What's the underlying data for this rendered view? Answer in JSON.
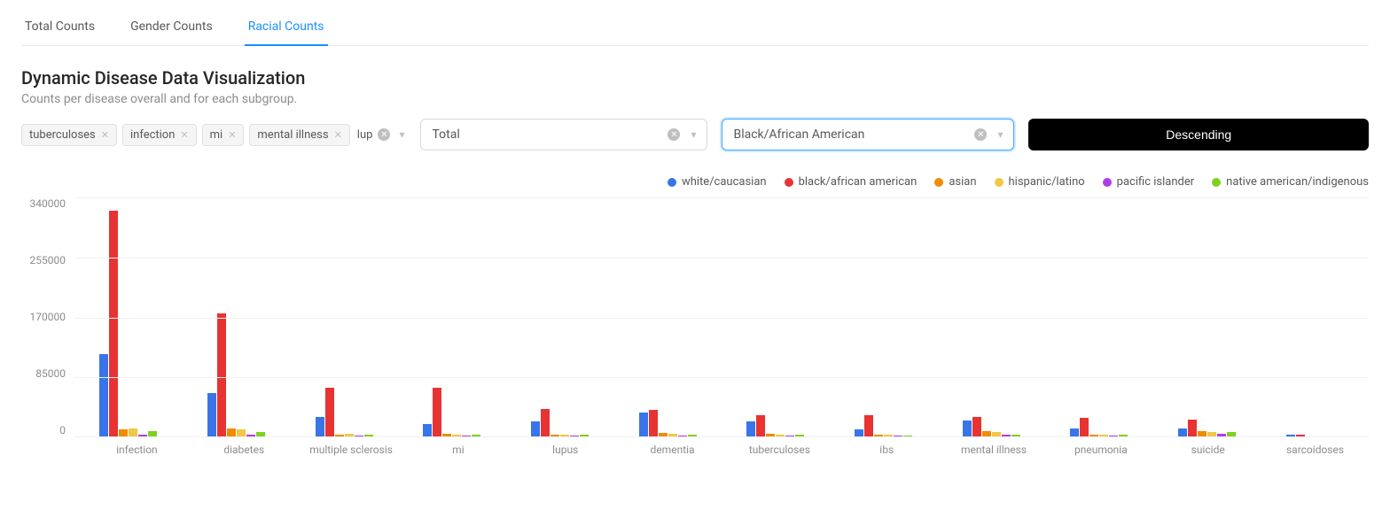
{
  "tabs": [
    {
      "label": "Total Counts",
      "active": false
    },
    {
      "label": "Gender Counts",
      "active": false
    },
    {
      "label": "Racial Counts",
      "active": true
    }
  ],
  "header": {
    "title": "Dynamic Disease Data Visualization",
    "subtitle": "Counts per disease overall and for each subgroup."
  },
  "filters": {
    "tags": [
      "tuberculoses",
      "infection",
      "mi",
      "mental illness"
    ],
    "typing": "lup",
    "select_total": "Total",
    "select_race": "Black/African American",
    "sort_label": "Descending"
  },
  "chart": {
    "type": "grouped-bar",
    "y_max": 340000,
    "y_ticks": [
      340000,
      255000,
      170000,
      85000,
      0
    ],
    "grid_color": "#f0f0f0",
    "label_color": "#8c8c8c",
    "label_fontsize": 12,
    "series": [
      {
        "key": "white",
        "label": "white/caucasian",
        "color": "#3875e8"
      },
      {
        "key": "black",
        "label": "black/african american",
        "color": "#e83333"
      },
      {
        "key": "asian",
        "label": "asian",
        "color": "#f08c00"
      },
      {
        "key": "hispanic",
        "label": "hispanic/latino",
        "color": "#f2c744"
      },
      {
        "key": "pacific",
        "label": "pacific islander",
        "color": "#b03ee8"
      },
      {
        "key": "native",
        "label": "native american/indigenous",
        "color": "#7fd120"
      }
    ],
    "categories": [
      {
        "label": "infection",
        "values": {
          "white": 118000,
          "black": 322000,
          "asian": 10000,
          "hispanic": 12000,
          "pacific": 2000,
          "native": 8000
        }
      },
      {
        "label": "diabetes",
        "values": {
          "white": 62000,
          "black": 176000,
          "asian": 12000,
          "hispanic": 10000,
          "pacific": 2000,
          "native": 6000
        }
      },
      {
        "label": "multiple sclerosis",
        "values": {
          "white": 28000,
          "black": 70000,
          "asian": 3000,
          "hispanic": 4000,
          "pacific": 1000,
          "native": 2000
        }
      },
      {
        "label": "mi",
        "values": {
          "white": 18000,
          "black": 70000,
          "asian": 4000,
          "hispanic": 3000,
          "pacific": 1000,
          "native": 2000
        }
      },
      {
        "label": "lupus",
        "values": {
          "white": 21000,
          "black": 39000,
          "asian": 3000,
          "hispanic": 2000,
          "pacific": 1000,
          "native": 2000
        }
      },
      {
        "label": "dementia",
        "values": {
          "white": 34000,
          "black": 38000,
          "asian": 5000,
          "hispanic": 4000,
          "pacific": 1000,
          "native": 2000
        }
      },
      {
        "label": "tuberculoses",
        "values": {
          "white": 22000,
          "black": 30000,
          "asian": 4000,
          "hispanic": 3000,
          "pacific": 1000,
          "native": 2000
        }
      },
      {
        "label": "ibs",
        "values": {
          "white": 10000,
          "black": 30000,
          "asian": 2000,
          "hispanic": 2000,
          "pacific": 1000,
          "native": 1000
        }
      },
      {
        "label": "mental illness",
        "values": {
          "white": 23000,
          "black": 28000,
          "asian": 8000,
          "hispanic": 6000,
          "pacific": 2000,
          "native": 3000
        }
      },
      {
        "label": "pneumonia",
        "values": {
          "white": 12000,
          "black": 26000,
          "asian": 3000,
          "hispanic": 2000,
          "pacific": 1000,
          "native": 2000
        }
      },
      {
        "label": "suicide",
        "values": {
          "white": 11000,
          "black": 24000,
          "asian": 8000,
          "hispanic": 6000,
          "pacific": 4000,
          "native": 6000
        }
      },
      {
        "label": "sarcoidoses",
        "values": {
          "white": 2000,
          "black": 3000,
          "asian": 500,
          "hispanic": 500,
          "pacific": 300,
          "native": 500
        }
      }
    ]
  }
}
